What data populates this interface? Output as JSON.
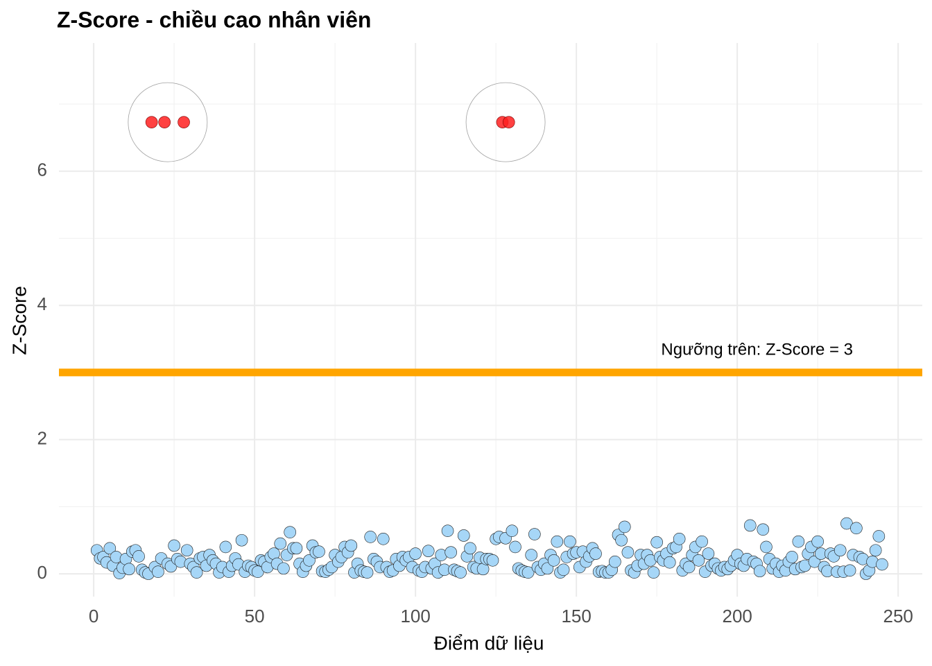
{
  "chart_data": {
    "type": "scatter",
    "title": "Z-Score - chiều cao nhân viên",
    "xlabel": "Điểm dữ liệu",
    "ylabel": "Z-Score",
    "xlim": [
      -10.8,
      257.5
    ],
    "ylim": [
      -0.34,
      7.91
    ],
    "xticks": [
      0,
      50,
      100,
      150,
      200,
      250
    ],
    "yticks": [
      0,
      2,
      4,
      6
    ],
    "grid": true,
    "hline": {
      "value": 3,
      "color": "#ffa500",
      "label": "Ngưỡng trên: Z-Score = 3"
    },
    "series": [
      {
        "color": "#a6d6f7",
        "x": [
          1,
          2,
          3,
          4,
          5,
          6,
          7,
          8,
          9,
          10,
          11,
          12,
          13,
          14,
          15,
          16,
          17,
          19,
          20,
          21,
          23,
          24,
          25,
          26,
          27,
          29,
          30,
          31,
          32,
          33,
          34,
          35,
          36,
          37,
          38,
          39,
          40,
          41,
          42,
          43,
          44,
          45,
          46,
          47,
          48,
          49,
          50,
          51,
          52,
          53,
          54,
          55,
          56,
          57,
          58,
          59,
          60,
          61,
          62,
          63,
          64,
          65,
          66,
          67,
          68,
          69,
          70,
          71,
          72,
          73,
          74,
          75,
          76,
          77,
          78,
          79,
          80,
          81,
          82,
          83,
          84,
          85,
          86,
          87,
          88,
          89,
          90,
          91,
          92,
          93,
          94,
          95,
          96,
          97,
          98,
          99,
          100,
          101,
          102,
          103,
          104,
          105,
          106,
          107,
          108,
          109,
          110,
          111,
          112,
          113,
          114,
          115,
          116,
          117,
          118,
          119,
          120,
          121,
          122,
          123,
          124,
          125,
          126,
          128,
          130,
          131,
          132,
          133,
          134,
          135,
          136,
          137,
          138,
          139,
          140,
          141,
          142,
          143,
          144,
          145,
          146,
          147,
          148,
          149,
          150,
          151,
          152,
          153,
          154,
          155,
          156,
          157,
          158,
          159,
          160,
          161,
          162,
          163,
          164,
          165,
          166,
          167,
          168,
          169,
          170,
          171,
          172,
          173,
          174,
          175,
          176,
          177,
          178,
          179,
          180,
          181,
          182,
          183,
          184,
          185,
          186,
          187,
          188,
          189,
          190,
          191,
          192,
          193,
          194,
          195,
          196,
          197,
          198,
          199,
          200,
          201,
          202,
          203,
          204,
          205,
          206,
          207,
          208,
          209,
          210,
          211,
          212,
          213,
          214,
          215,
          216,
          217,
          218,
          219,
          220,
          221,
          222,
          223,
          224,
          225,
          226,
          227,
          228,
          229,
          230,
          231,
          232,
          233,
          234,
          235,
          236,
          237,
          238,
          239,
          240,
          241,
          242,
          243,
          244,
          245
        ],
        "values": [
          0.35,
          0.23,
          0.25,
          0.17,
          0.38,
          0.12,
          0.25,
          0.01,
          0.09,
          0.22,
          0.07,
          0.33,
          0.35,
          0.26,
          0.06,
          0.02,
          0.0,
          0.1,
          0.03,
          0.23,
          0.15,
          0.11,
          0.42,
          0.22,
          0.18,
          0.35,
          0.15,
          0.1,
          0.02,
          0.23,
          0.25,
          0.12,
          0.28,
          0.2,
          0.15,
          0.02,
          0.1,
          0.4,
          0.03,
          0.12,
          0.23,
          0.14,
          0.5,
          0.03,
          0.12,
          0.1,
          0.05,
          0.03,
          0.2,
          0.18,
          0.1,
          0.25,
          0.3,
          0.15,
          0.45,
          0.08,
          0.28,
          0.62,
          0.38,
          0.38,
          0.15,
          0.03,
          0.12,
          0.2,
          0.42,
          0.32,
          0.33,
          0.04,
          0.03,
          0.06,
          0.1,
          0.28,
          0.18,
          0.25,
          0.4,
          0.32,
          0.42,
          0.02,
          0.15,
          0.05,
          0.03,
          0.02,
          0.55,
          0.22,
          0.18,
          0.1,
          0.52,
          0.1,
          0.03,
          0.05,
          0.22,
          0.12,
          0.25,
          0.2,
          0.25,
          0.1,
          0.3,
          0.05,
          0.03,
          0.1,
          0.34,
          0.08,
          0.15,
          0.02,
          0.28,
          0.06,
          0.64,
          0.32,
          0.06,
          0.04,
          0.02,
          0.57,
          0.26,
          0.38,
          0.1,
          0.08,
          0.24,
          0.07,
          0.22,
          0.22,
          0.2,
          0.52,
          0.55,
          0.53,
          0.64,
          0.4,
          0.08,
          0.05,
          0.03,
          0.02,
          0.28,
          0.59,
          0.1,
          0.06,
          0.15,
          0.08,
          0.28,
          0.2,
          0.48,
          0.02,
          0.06,
          0.25,
          0.48,
          0.3,
          0.32,
          0.1,
          0.33,
          0.18,
          0.26,
          0.38,
          0.3,
          0.03,
          0.04,
          0.02,
          0.02,
          0.06,
          0.18,
          0.58,
          0.5,
          0.7,
          0.32,
          0.05,
          0.02,
          0.12,
          0.28,
          0.15,
          0.28,
          0.2,
          0.02,
          0.47,
          0.25,
          0.2,
          0.3,
          0.17,
          0.38,
          0.4,
          0.52,
          0.05,
          0.15,
          0.1,
          0.28,
          0.4,
          0.2,
          0.48,
          0.03,
          0.3,
          0.12,
          0.15,
          0.08,
          0.05,
          0.1,
          0.07,
          0.12,
          0.2,
          0.28,
          0.15,
          0.12,
          0.22,
          0.72,
          0.18,
          0.15,
          0.04,
          0.66,
          0.4,
          0.22,
          0.08,
          0.15,
          0.03,
          0.12,
          0.05,
          0.18,
          0.25,
          0.07,
          0.48,
          0.1,
          0.12,
          0.3,
          0.4,
          0.18,
          0.48,
          0.3,
          0.1,
          0.04,
          0.3,
          0.26,
          0.03,
          0.35,
          0.03,
          0.75,
          0.05,
          0.28,
          0.68,
          0.25,
          0.22,
          0.0,
          0.05,
          0.18,
          0.35,
          0.56,
          0.14
        ]
      },
      {
        "color": "#ff2020",
        "x": [
          18,
          22,
          28,
          127,
          129
        ],
        "values": [
          6.73,
          6.73,
          6.73,
          6.73,
          6.73
        ]
      }
    ]
  }
}
